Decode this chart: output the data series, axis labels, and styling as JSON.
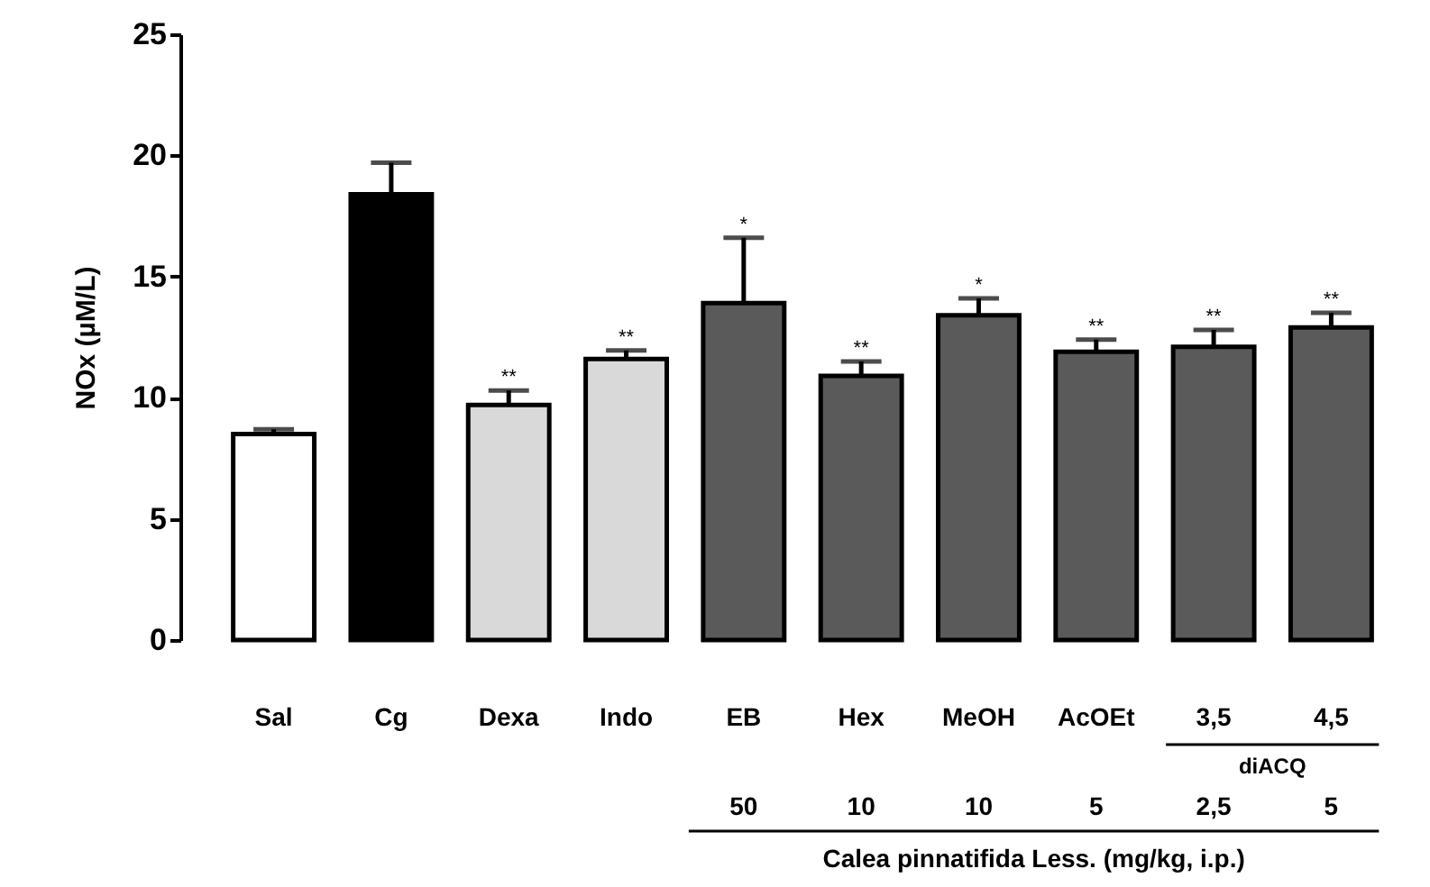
{
  "chart_data": {
    "type": "bar",
    "categories": [
      "Sal",
      "Cg",
      "Dexa",
      "Indo",
      "EB",
      "Hex",
      "MeOH",
      "AcOEt",
      "3,5",
      "4,5"
    ],
    "values": [
      8.5,
      18.4,
      9.7,
      11.6,
      13.9,
      10.9,
      13.4,
      11.9,
      12.1,
      12.9
    ],
    "errors": [
      0.2,
      1.3,
      0.6,
      0.35,
      2.7,
      0.6,
      0.7,
      0.5,
      0.7,
      0.6
    ],
    "colors": [
      "#ffffff",
      "#000000",
      "#d9d9d9",
      "#d9d9d9",
      "#5a5a5a",
      "#5a5a5a",
      "#5a5a5a",
      "#5a5a5a",
      "#5a5a5a",
      "#5a5a5a"
    ],
    "ylabel": "NOx (µM/L)",
    "xlabel": "Calea pinnatifida Less. (mg/kg, i.p.)",
    "ylim": [
      0,
      25
    ],
    "yticks": [
      0,
      5,
      10,
      15,
      20,
      25
    ],
    "grid": false,
    "annotations": [
      {
        "text": "**",
        "x": "Dexa",
        "y": 10.3
      },
      {
        "text": "**",
        "x": "Indo",
        "y": 11.95
      },
      {
        "text": "*",
        "x": "EB",
        "y": 16.6
      },
      {
        "text": "**",
        "x": "Hex",
        "y": 11.5
      },
      {
        "text": "*",
        "x": "MeOH",
        "y": 14.1
      },
      {
        "text": "**",
        "x": "AcOEt",
        "y": 12.4
      },
      {
        "text": "**",
        "x": "3,5",
        "y": 12.8
      },
      {
        "text": "**",
        "x": "4,5",
        "y": 13.5
      },
      "50",
      "10",
      "10",
      "5",
      "2,5",
      "5",
      "diACQ"
    ]
  }
}
